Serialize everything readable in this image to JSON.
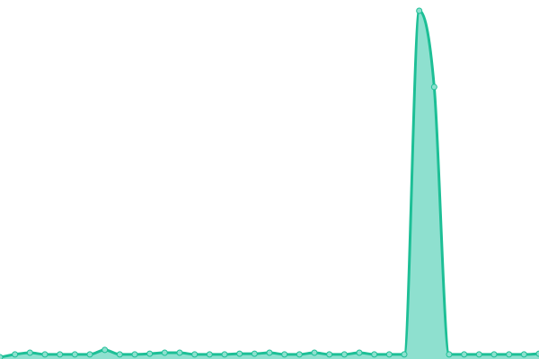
{
  "chart_data": {
    "type": "area",
    "title": "",
    "xlabel": "",
    "ylabel": "",
    "x": [
      0,
      1,
      2,
      3,
      4,
      5,
      6,
      7,
      8,
      9,
      10,
      11,
      12,
      13,
      14,
      15,
      16,
      17,
      18,
      19,
      20,
      21,
      22,
      23,
      24,
      25,
      26,
      27,
      28,
      29,
      30,
      31,
      32,
      33,
      34,
      35,
      36
    ],
    "series": [
      {
        "values": [
          0,
          0.8,
          1.3,
          0.8,
          0.8,
          0.8,
          0.8,
          2.1,
          0.8,
          0.8,
          1,
          1.3,
          1.3,
          0.8,
          0.8,
          0.8,
          1,
          1,
          1.3,
          0.8,
          0.8,
          1.3,
          0.8,
          0.8,
          1.3,
          0.8,
          0.8,
          0.8,
          100,
          78,
          0.8,
          0.8,
          0.8,
          0.8,
          0.8,
          0.8,
          1
        ]
      }
    ],
    "ylim": [
      0,
      100
    ],
    "grid": false,
    "axes_visible": false,
    "markers": true,
    "smooth": true,
    "colors": {
      "line": "#1dbf96",
      "fill": "#8ee0cf",
      "marker": "#8ee0cf"
    }
  }
}
